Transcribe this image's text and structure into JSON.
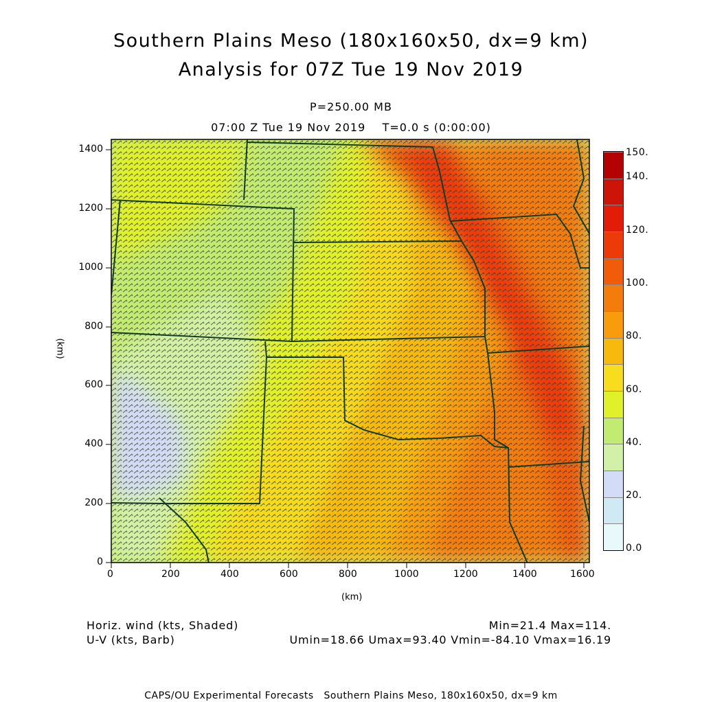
{
  "title_line1": "Southern Plains Meso (180x160x50, dx=9 km)",
  "title_line2": "Analysis for 07Z Tue 19 Nov 2019",
  "pressure_label": "P=250.00 MB",
  "time_label": "07:00 Z Tue 19 Nov 2019    T=0.0 s (0:00:00)",
  "x_axis_label": "(km)",
  "y_axis_label": "(km)",
  "x_ticks": [
    "0",
    "200",
    "400",
    "600",
    "800",
    "1000",
    "1200",
    "1400",
    "1600"
  ],
  "y_ticks": [
    "0",
    "200",
    "400",
    "600",
    "800",
    "1000",
    "1200",
    "1400"
  ],
  "colorbar_labels": [
    "150.",
    "140.",
    "120.",
    "100.",
    "80.",
    "60.",
    "40.",
    "20.",
    "0.0"
  ],
  "colorbar_colors": [
    "#e8f8fb",
    "#cfeaf4",
    "#d2dcf6",
    "#d2f1a6",
    "#c2eb72",
    "#e0f12a",
    "#f8dc1e",
    "#f8b90d",
    "#f89c0c",
    "#f47c0a",
    "#f05c08",
    "#ec3a08",
    "#e21c08",
    "#cc1408",
    "#b40204"
  ],
  "legend_left_line1": "Horiz. wind (kts, Shaded)",
  "legend_left_line2": "U-V (kts, Barb)",
  "legend_right_line1": "Min=21.4 Max=114.",
  "legend_right_line2": "Umin=18.66 Umax=93.40 Vmin=-84.10 Vmax=16.19",
  "footer": "CAPS/OU Experimental Forecasts   Southern Plains Meso, 180x160x50, dx=9 km",
  "map_colors": {
    "boundary": "#143c24",
    "barb": "#3a3a2a"
  }
}
